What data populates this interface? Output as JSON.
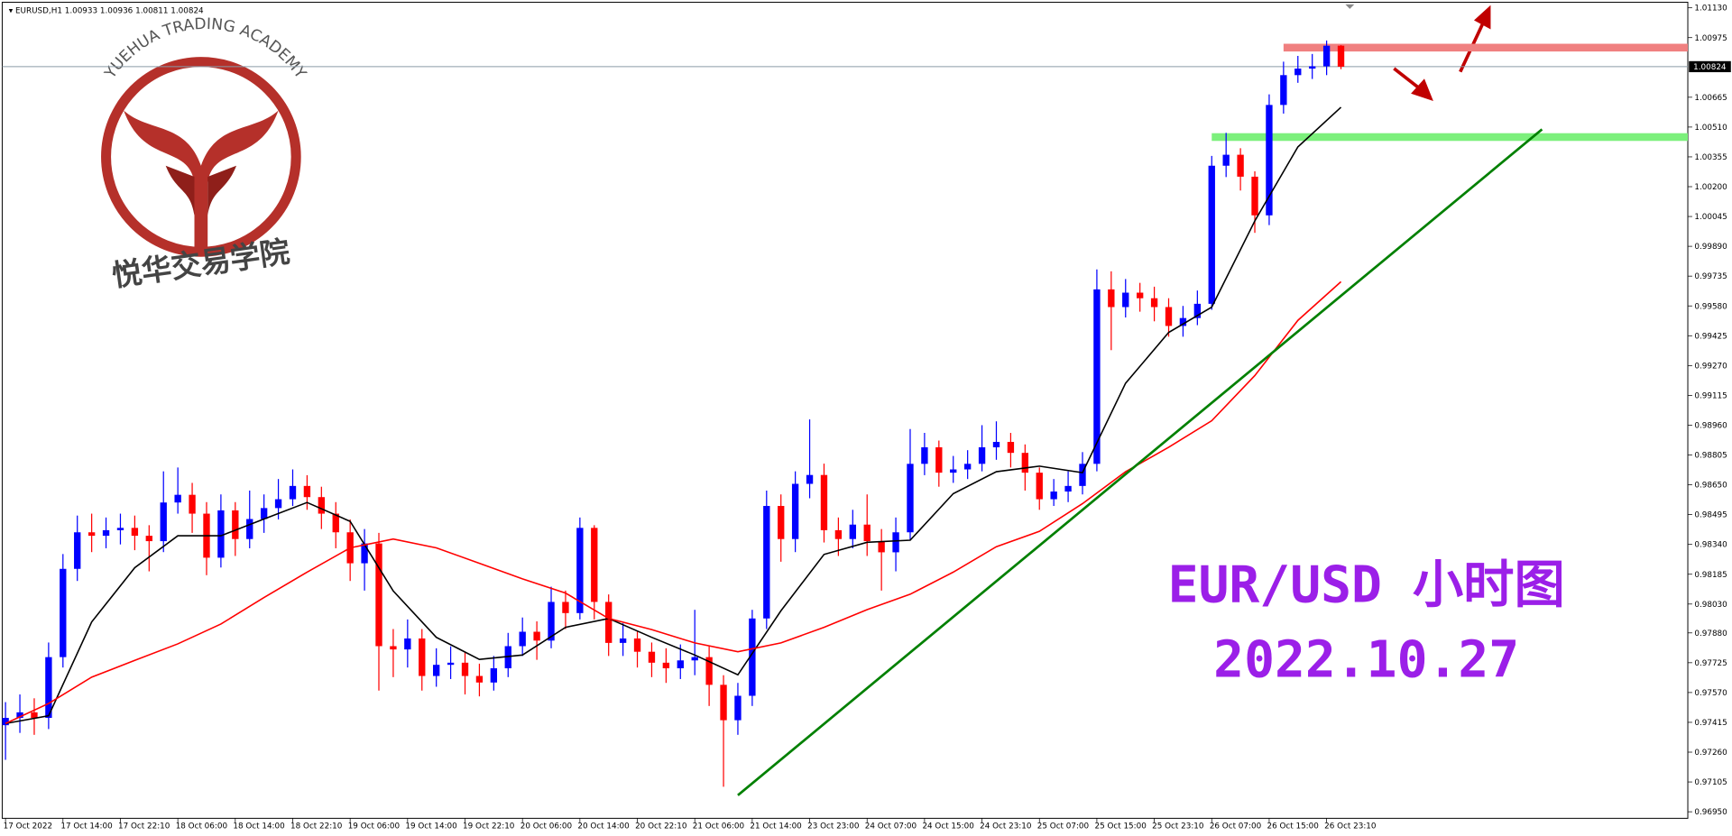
{
  "chart_data": {
    "type": "candlestick",
    "symbol": "EURUSD,H1",
    "watermark": "YUEHUA TRADING ACADEMY",
    "watermark_cn": "悦华交易学院",
    "title": "EUR/USD 小时图",
    "subtitle": "2022.10.27",
    "up_color": "#0000ff",
    "down_color": "#ff0000",
    "open": [
      0.974,
      0.97438,
      0.97467,
      0.97438,
      0.97754,
      0.98213,
      0.98403,
      0.98385,
      0.98414,
      0.98426,
      0.98385,
      0.98357,
      0.98558,
      0.98598,
      0.985,
      0.98271,
      0.98517,
      0.98368,
      0.98472,
      0.98529,
      0.98575,
      0.98644,
      0.98586,
      0.985,
      0.98403,
      0.98242,
      0.98345,
      0.97811,
      0.97794,
      0.97851,
      0.97656,
      0.97714,
      0.97725,
      0.97656,
      0.97622,
      0.97696,
      0.97811,
      0.97886,
      0.9784,
      0.98041,
      0.97983,
      0.98426,
      0.98041,
      0.97828,
      0.97851,
      0.97782,
      0.97725,
      0.97696,
      0.97737,
      0.97754,
      0.9761,
      0.97426,
      0.97553,
      0.97955,
      0.9854,
      0.98368,
      0.98655,
      0.98701,
      0.98414,
      0.98368,
      0.98443,
      0.98357,
      0.98299,
      0.98403,
      0.98759,
      0.98845,
      0.98713,
      0.9873,
      0.98759,
      0.98845,
      0.98873,
      0.98816,
      0.98713,
      0.98575,
      0.98615,
      0.98644,
      0.98759,
      0.99666,
      0.99574,
      0.99649,
      0.9962,
      0.99574,
      0.99476,
      0.99517,
      0.99591,
      1.00309,
      1.00366,
      1.00252,
      1.00051,
      1.00625,
      1.0078,
      1.00814,
      1.00826,
      1.00933
    ],
    "high": [
      0.9752,
      0.9756,
      0.9754,
      0.9783,
      0.9829,
      0.9849,
      0.985,
      0.9848,
      0.985,
      0.9849,
      0.9844,
      0.9872,
      0.9874,
      0.9866,
      0.9856,
      0.986,
      0.9856,
      0.9862,
      0.986,
      0.9868,
      0.9873,
      0.987,
      0.9864,
      0.9856,
      0.9847,
      0.9842,
      0.984,
      0.979,
      0.9795,
      0.979,
      0.978,
      0.9781,
      0.9778,
      0.9772,
      0.9776,
      0.9788,
      0.9796,
      0.9794,
      0.9812,
      0.981,
      0.9848,
      0.9844,
      0.9808,
      0.9793,
      0.9789,
      0.9783,
      0.978,
      0.9782,
      0.98,
      0.9781,
      0.9766,
      0.9762,
      0.98,
      0.9862,
      0.986,
      0.9872,
      0.9899,
      0.9876,
      0.9848,
      0.9852,
      0.986,
      0.9842,
      0.9848,
      0.9894,
      0.9892,
      0.9888,
      0.988,
      0.9883,
      0.9896,
      0.9898,
      0.9892,
      0.9886,
      0.9874,
      0.9868,
      0.9872,
      0.9882,
      0.9977,
      0.9976,
      0.9972,
      0.997,
      0.9968,
      0.9962,
      0.9958,
      0.9966,
      1.0036,
      1.0048,
      1.004,
      1.0028,
      1.0068,
      1.0085,
      1.0088,
      1.0089,
      1.0096,
      1.00936
    ],
    "low": [
      0.9722,
      0.9736,
      0.9735,
      0.9738,
      0.977,
      0.9815,
      0.983,
      0.9832,
      0.9834,
      0.9831,
      0.982,
      0.983,
      0.985,
      0.984,
      0.9818,
      0.9822,
      0.9828,
      0.9832,
      0.984,
      0.9847,
      0.9854,
      0.9852,
      0.9842,
      0.9832,
      0.9815,
      0.981,
      0.9758,
      0.9765,
      0.977,
      0.9758,
      0.976,
      0.9764,
      0.9756,
      0.9755,
      0.9758,
      0.9765,
      0.9776,
      0.9774,
      0.978,
      0.979,
      0.9795,
      0.9795,
      0.9776,
      0.9776,
      0.977,
      0.9765,
      0.9762,
      0.9764,
      0.9766,
      0.975,
      0.9708,
      0.9735,
      0.975,
      0.979,
      0.9825,
      0.983,
      0.9858,
      0.9835,
      0.9828,
      0.9832,
      0.9828,
      0.981,
      0.982,
      0.9836,
      0.987,
      0.9864,
      0.9866,
      0.9868,
      0.9872,
      0.9878,
      0.9874,
      0.9862,
      0.9852,
      0.9854,
      0.9856,
      0.986,
      0.9872,
      0.9935,
      0.9952,
      0.9955,
      0.995,
      0.9942,
      0.9942,
      0.9948,
      0.9956,
      1.0025,
      1.0018,
      0.9996,
      1.0,
      1.0058,
      1.0074,
      1.0076,
      1.0078,
      1.00811
    ],
    "close": [
      0.97438,
      0.97467,
      0.97438,
      0.97754,
      0.98213,
      0.98403,
      0.98385,
      0.98414,
      0.98426,
      0.98385,
      0.98357,
      0.98558,
      0.98598,
      0.985,
      0.98271,
      0.98517,
      0.98368,
      0.98472,
      0.98529,
      0.98575,
      0.98644,
      0.98586,
      0.985,
      0.98403,
      0.98242,
      0.98345,
      0.97811,
      0.97794,
      0.97851,
      0.97656,
      0.97714,
      0.97725,
      0.97656,
      0.97622,
      0.97696,
      0.97811,
      0.97886,
      0.9784,
      0.98041,
      0.97983,
      0.98426,
      0.98041,
      0.97828,
      0.97851,
      0.97782,
      0.97725,
      0.97696,
      0.97737,
      0.97754,
      0.9761,
      0.97426,
      0.97553,
      0.97955,
      0.9854,
      0.98368,
      0.98655,
      0.98701,
      0.98414,
      0.98368,
      0.98443,
      0.98357,
      0.98299,
      0.98403,
      0.98759,
      0.98845,
      0.98713,
      0.9873,
      0.98759,
      0.98845,
      0.98873,
      0.98816,
      0.98713,
      0.98575,
      0.98615,
      0.98644,
      0.98759,
      0.99666,
      0.99574,
      0.99649,
      0.9962,
      0.99574,
      0.99476,
      0.99517,
      0.99591,
      1.00309,
      1.00366,
      1.00252,
      1.00051,
      1.00625,
      1.0078,
      1.00814,
      1.00826,
      1.00933,
      1.00824
    ],
    "indicators": [
      {
        "color": "#000000",
        "x": [
          0,
          3,
          6,
          9,
          12,
          15,
          18,
          21,
          24,
          27,
          30,
          33,
          36,
          39,
          42,
          45,
          48,
          51,
          54,
          57,
          60,
          63,
          66,
          69,
          72,
          75,
          78,
          81,
          84,
          87,
          90,
          93
        ],
        "values": [
          0.97409,
          0.97449,
          0.97937,
          0.98219,
          0.98385,
          0.98385,
          0.98472,
          0.98558,
          0.9846,
          0.98098,
          0.97857,
          0.97742,
          0.97765,
          0.97909,
          0.97955,
          0.97857,
          0.97765,
          0.97662,
          0.97995,
          0.98288,
          0.98351,
          0.98362,
          0.98604,
          0.98718,
          0.98747,
          0.98713,
          0.99178,
          0.99442,
          0.99574,
          1.00022,
          1.00407,
          1.00613
        ]
      },
      {
        "color": "#ff0000",
        "x": [
          0,
          3,
          6,
          9,
          12,
          15,
          18,
          21,
          24,
          27,
          30,
          33,
          36,
          39,
          42,
          45,
          48,
          51,
          54,
          57,
          60,
          63,
          66,
          69,
          72,
          75,
          78,
          81,
          84,
          87,
          90,
          93
        ],
        "values": [
          0.97409,
          0.97513,
          0.9765,
          0.97737,
          0.97823,
          0.97926,
          0.98064,
          0.98196,
          0.98322,
          0.98368,
          0.98322,
          0.98242,
          0.98161,
          0.98087,
          0.97955,
          0.97897,
          0.97828,
          0.97782,
          0.97828,
          0.97909,
          0.98001,
          0.98081,
          0.98196,
          0.98328,
          0.98408,
          0.98552,
          0.98718,
          0.98845,
          0.98983,
          0.99218,
          0.99505,
          0.99706
        ]
      }
    ],
    "levels": [
      {
        "color": "#f08080",
        "value": 1.00923,
        "start": 89
      },
      {
        "color": "#7cf07c",
        "value": 1.00458,
        "start": 84
      }
    ],
    "trendline": {
      "color": "#008000",
      "x": [
        51,
        107
      ],
      "values": [
        0.97036,
        1.00498
      ]
    },
    "xlabels": [
      "17 Oct 2022",
      "17 Oct 14:00",
      "17 Oct 22:10",
      "18 Oct 06:00",
      "18 Oct 14:00",
      "18 Oct 22:10",
      "19 Oct 06:00",
      "19 Oct 14:00",
      "19 Oct 22:10",
      "20 Oct 06:00",
      "20 Oct 14:00",
      "20 Oct 22:10",
      "21 Oct 06:00",
      "21 Oct 14:00",
      "23 Oct 23:00",
      "24 Oct 07:00",
      "24 Oct 15:00",
      "24 Oct 23:10",
      "25 Oct 07:00",
      "25 Oct 15:00",
      "25 Oct 23:10",
      "26 Oct 07:00",
      "26 Oct 15:00",
      "26 Oct 23:10"
    ],
    "ylim": [
      0.96916,
      1.01159
    ],
    "yticks": [
      {
        "value": 1.0113,
        "label": "1.01130"
      },
      {
        "value": 1.00975,
        "label": "1.00975"
      },
      {
        "value": 1.00665,
        "label": "1.00665"
      },
      {
        "value": 1.0051,
        "label": "1.00510"
      },
      {
        "value": 1.00355,
        "label": "1.00355"
      },
      {
        "value": 1.002,
        "label": "1.00200"
      },
      {
        "value": 1.00045,
        "label": "1.00045"
      },
      {
        "value": 0.9989,
        "label": "0.99890"
      },
      {
        "value": 0.99735,
        "label": "0.99735"
      },
      {
        "value": 0.9958,
        "label": "0.99580"
      },
      {
        "value": 0.99425,
        "label": "0.99425"
      },
      {
        "value": 0.9927,
        "label": "0.99270"
      },
      {
        "value": 0.99115,
        "label": "0.99115"
      },
      {
        "value": 0.9896,
        "label": "0.98960"
      },
      {
        "value": 0.98805,
        "label": "0.98805"
      },
      {
        "value": 0.9865,
        "label": "0.98650"
      },
      {
        "value": 0.98495,
        "label": "0.98495"
      },
      {
        "value": 0.9834,
        "label": "0.98340"
      },
      {
        "value": 0.98185,
        "label": "0.98185"
      },
      {
        "value": 0.9803,
        "label": "0.98030"
      },
      {
        "value": 0.9788,
        "label": "0.97880"
      },
      {
        "value": 0.97725,
        "label": "0.97725"
      },
      {
        "value": 0.9757,
        "label": "0.97570"
      },
      {
        "value": 0.97415,
        "label": "0.97415"
      },
      {
        "value": 0.9726,
        "label": "0.97260"
      },
      {
        "value": 0.97105,
        "label": "0.97105"
      },
      {
        "value": 0.9695,
        "label": "0.96950"
      }
    ],
    "grid": false
  }
}
